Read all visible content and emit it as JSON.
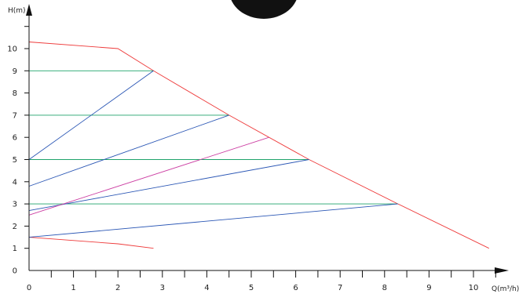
{
  "chart_data": {
    "type": "line",
    "xlabel": "Q(m³/h)",
    "ylabel": "H(m)",
    "xlim": [
      0,
      10.6
    ],
    "ylim": [
      0,
      11
    ],
    "xticks": [
      "0",
      "1",
      "2",
      "3",
      "4",
      "5",
      "6",
      "7",
      "8",
      "9",
      "10"
    ],
    "yticks": [
      "0",
      "1",
      "2",
      "3",
      "4",
      "5",
      "6",
      "7",
      "8",
      "9",
      "10"
    ],
    "grid": false,
    "colors": {
      "envelope": "#ee3b3b",
      "horizontal": "#1fa36b",
      "blue": "#2b57b5",
      "magenta": "#cc3fa3",
      "axis": "#111111",
      "blob": "#111111"
    },
    "series": [
      {
        "color_key": "envelope",
        "points": [
          [
            0,
            10.3
          ],
          [
            2,
            10.0
          ],
          [
            2.8,
            9.0
          ],
          [
            4.5,
            7.0
          ],
          [
            6.3,
            5.0
          ],
          [
            8.3,
            3.0
          ],
          [
            10.35,
            1.0
          ]
        ]
      },
      {
        "color_key": "envelope",
        "points": [
          [
            0,
            1.5
          ],
          [
            2,
            1.2
          ],
          [
            2.8,
            1.0
          ]
        ]
      },
      {
        "color_key": "horizontal",
        "points": [
          [
            0,
            9
          ],
          [
            2.8,
            9
          ]
        ]
      },
      {
        "color_key": "horizontal",
        "points": [
          [
            0,
            7
          ],
          [
            4.5,
            7
          ]
        ]
      },
      {
        "color_key": "horizontal",
        "points": [
          [
            0,
            5
          ],
          [
            6.3,
            5
          ]
        ]
      },
      {
        "color_key": "horizontal",
        "points": [
          [
            0,
            3
          ],
          [
            8.3,
            3
          ]
        ]
      },
      {
        "color_key": "blue",
        "points": [
          [
            0,
            5.0
          ],
          [
            2.8,
            9.0
          ]
        ]
      },
      {
        "color_key": "blue",
        "points": [
          [
            0,
            3.8
          ],
          [
            4.5,
            7.0
          ]
        ]
      },
      {
        "color_key": "blue",
        "points": [
          [
            0,
            2.7
          ],
          [
            6.3,
            5.0
          ]
        ]
      },
      {
        "color_key": "blue",
        "points": [
          [
            0,
            1.5
          ],
          [
            8.3,
            3.0
          ]
        ]
      },
      {
        "color_key": "magenta",
        "points": [
          [
            0,
            2.5
          ],
          [
            5.4,
            6.0
          ]
        ]
      }
    ]
  }
}
